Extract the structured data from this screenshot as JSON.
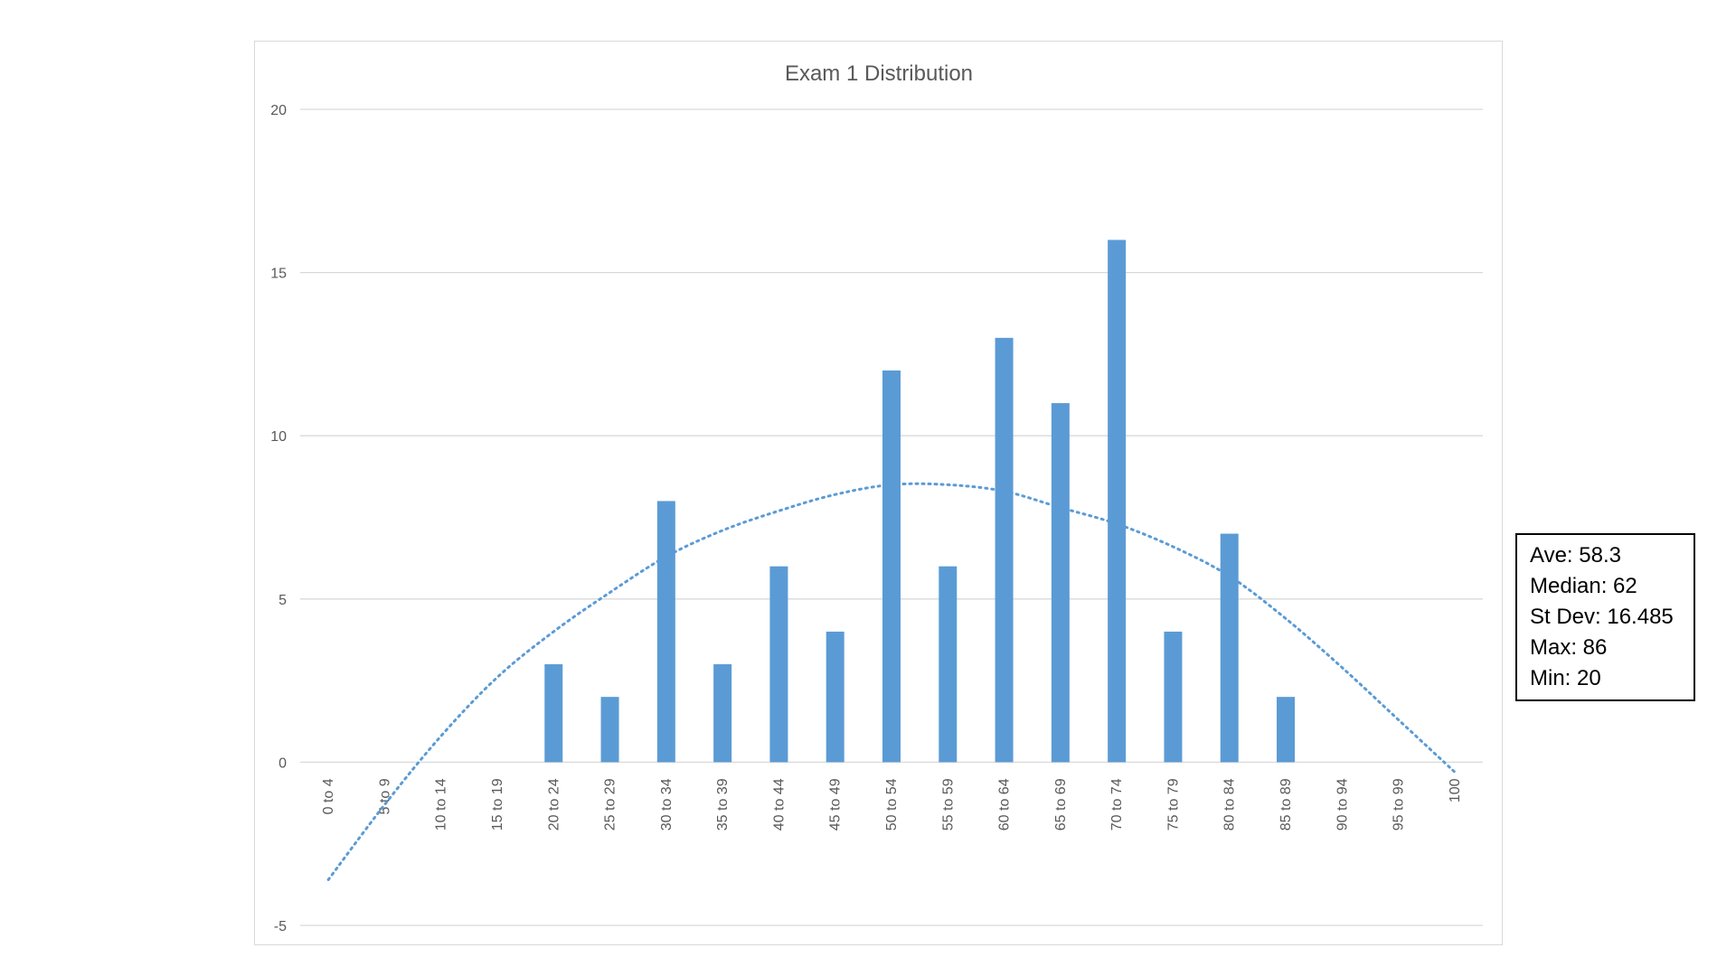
{
  "chart_data": {
    "type": "bar",
    "title": "Exam 1 Distribution",
    "xlabel": "",
    "ylabel": "",
    "categories": [
      "0 to 4",
      "5 to 9",
      "10 to 14",
      "15 to 19",
      "20 to 24",
      "25 to 29",
      "30 to 34",
      "35 to 39",
      "40 to 44",
      "45 to 49",
      "50 to 54",
      "55 to 59",
      "60 to 64",
      "65 to 69",
      "70 to 74",
      "75 to 79",
      "80 to 84",
      "85 to 89",
      "90 to 94",
      "95 to 99",
      "100"
    ],
    "series": [
      {
        "values": [
          0,
          0,
          0,
          0,
          3,
          2,
          8,
          3,
          6,
          4,
          12,
          6,
          13,
          11,
          16,
          4,
          7,
          2,
          0,
          0,
          0
        ]
      }
    ],
    "trendline": {
      "type": "polynomial",
      "style": "dotted",
      "values": [
        -3.6,
        -1.3,
        0.8,
        2.6,
        4.0,
        5.2,
        6.3,
        7.1,
        7.7,
        8.2,
        8.5,
        8.5,
        8.3,
        7.8,
        7.3,
        6.6,
        5.7,
        4.4,
        2.9,
        1.3,
        -0.3
      ]
    },
    "ylim": [
      -5,
      20
    ],
    "yticks": [
      -5,
      0,
      5,
      10,
      15,
      20
    ],
    "grid": true,
    "legend": "none",
    "colors": {
      "bar": "#5b9bd5",
      "trendline": "#5b9bd5",
      "grid": "#d9d9d9",
      "text": "#595959"
    }
  },
  "stats_box": {
    "lines": [
      "Ave: 58.3",
      "Median: 62",
      "St Dev: 16.485",
      "Max: 86",
      "Min: 20"
    ]
  }
}
